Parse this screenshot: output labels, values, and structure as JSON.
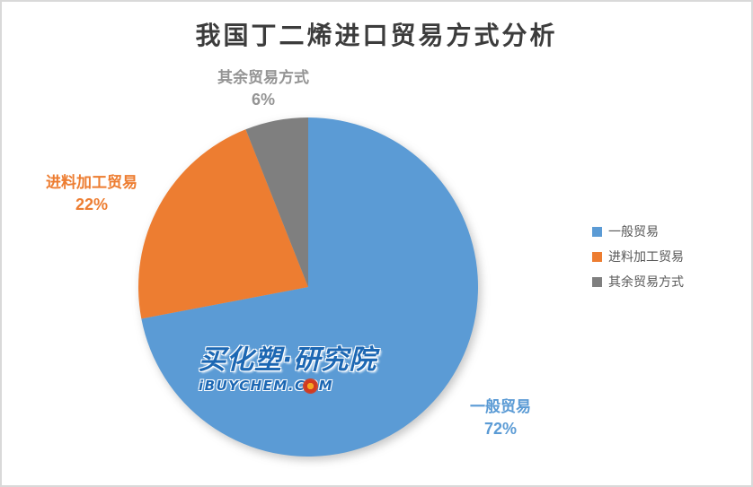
{
  "window": {
    "background": "#FFFFFF",
    "border_color": "#D9D9D9"
  },
  "chart_data": {
    "type": "pie",
    "title": "我国丁二烯进口贸易方式分析",
    "categories": [
      "一般贸易",
      "进料加工贸易",
      "其余贸易方式"
    ],
    "values": [
      72,
      22,
      6
    ],
    "value_labels": [
      "72%",
      "22%",
      "6%"
    ],
    "colors": [
      "#5B9BD5",
      "#ED7D31",
      "#7F7F7F"
    ],
    "label_text_colors": [
      "#5B9BD5",
      "#ED7D31",
      "#949494"
    ],
    "start_angle_deg": 0,
    "direction": "clockwise",
    "legend_position": "right",
    "legend_entries": [
      "一般贸易",
      "进料加工贸易",
      "其余贸易方式"
    ],
    "data_label_style": "category name above percentage, outside slice"
  },
  "watermark": {
    "line1": "买化塑·研究院",
    "line2": "iBUYCHEM.COM",
    "text_color": "#1C67B3",
    "gear_icon_colors": {
      "outer": "#D23A20",
      "inner": "#F5A623"
    }
  }
}
